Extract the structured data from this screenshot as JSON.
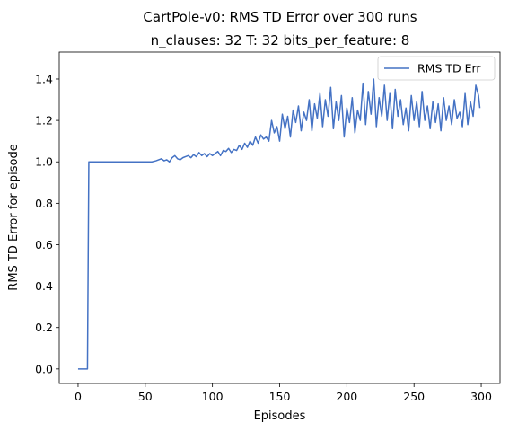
{
  "chart_data": {
    "type": "line",
    "title": "CartPole-v0: RMS TD Error over 300 runs",
    "subtitle": "n_clauses: 32 T: 32 bits_per_feature: 8",
    "xlabel": "Episodes",
    "ylabel": "RMS TD Error for episode",
    "xlim": [
      -14,
      314
    ],
    "ylim": [
      -0.07,
      1.53
    ],
    "xticks": [
      0,
      50,
      100,
      150,
      200,
      250,
      300
    ],
    "yticks": [
      0.0,
      0.2,
      0.4,
      0.6,
      0.8,
      1.0,
      1.2,
      1.4
    ],
    "grid": false,
    "legend_position": "top-right",
    "color": "#4472C4",
    "series": [
      {
        "name": "RMS TD Err",
        "x": [
          0,
          7,
          8,
          10,
          20,
          30,
          40,
          50,
          55,
          58,
          60,
          62,
          64,
          66,
          68,
          70,
          72,
          74,
          76,
          78,
          80,
          82,
          84,
          86,
          88,
          90,
          92,
          94,
          96,
          98,
          100,
          102,
          104,
          106,
          108,
          110,
          112,
          114,
          116,
          118,
          120,
          122,
          124,
          126,
          128,
          130,
          132,
          134,
          136,
          138,
          140,
          142,
          144,
          146,
          148,
          150,
          152,
          154,
          156,
          158,
          160,
          162,
          164,
          166,
          168,
          170,
          172,
          174,
          176,
          178,
          180,
          182,
          184,
          186,
          188,
          190,
          192,
          194,
          196,
          198,
          200,
          202,
          204,
          206,
          208,
          210,
          212,
          214,
          216,
          218,
          220,
          222,
          224,
          226,
          228,
          230,
          232,
          234,
          236,
          238,
          240,
          242,
          244,
          246,
          248,
          250,
          252,
          254,
          256,
          258,
          260,
          262,
          264,
          266,
          268,
          270,
          272,
          274,
          276,
          278,
          280,
          282,
          284,
          286,
          288,
          290,
          292,
          294,
          296,
          298,
          299
        ],
        "y": [
          0.0,
          0.0,
          1.0,
          1.0,
          1.0,
          1.0,
          1.0,
          1.0,
          1.0,
          1.005,
          1.01,
          1.015,
          1.005,
          1.01,
          1.0,
          1.02,
          1.03,
          1.015,
          1.01,
          1.02,
          1.025,
          1.03,
          1.02,
          1.035,
          1.025,
          1.045,
          1.03,
          1.04,
          1.025,
          1.04,
          1.03,
          1.04,
          1.05,
          1.03,
          1.055,
          1.05,
          1.065,
          1.045,
          1.06,
          1.055,
          1.08,
          1.06,
          1.09,
          1.07,
          1.1,
          1.08,
          1.12,
          1.09,
          1.13,
          1.11,
          1.12,
          1.1,
          1.2,
          1.14,
          1.17,
          1.1,
          1.23,
          1.16,
          1.22,
          1.12,
          1.25,
          1.19,
          1.27,
          1.15,
          1.24,
          1.2,
          1.3,
          1.15,
          1.28,
          1.21,
          1.33,
          1.17,
          1.3,
          1.22,
          1.36,
          1.16,
          1.29,
          1.2,
          1.32,
          1.12,
          1.26,
          1.19,
          1.31,
          1.14,
          1.25,
          1.2,
          1.38,
          1.18,
          1.34,
          1.23,
          1.4,
          1.17,
          1.31,
          1.22,
          1.37,
          1.2,
          1.33,
          1.16,
          1.35,
          1.22,
          1.3,
          1.18,
          1.26,
          1.15,
          1.32,
          1.2,
          1.29,
          1.17,
          1.34,
          1.2,
          1.27,
          1.16,
          1.29,
          1.19,
          1.28,
          1.15,
          1.31,
          1.2,
          1.27,
          1.18,
          1.3,
          1.21,
          1.24,
          1.17,
          1.33,
          1.18,
          1.29,
          1.22,
          1.37,
          1.32,
          1.26
        ]
      }
    ]
  }
}
